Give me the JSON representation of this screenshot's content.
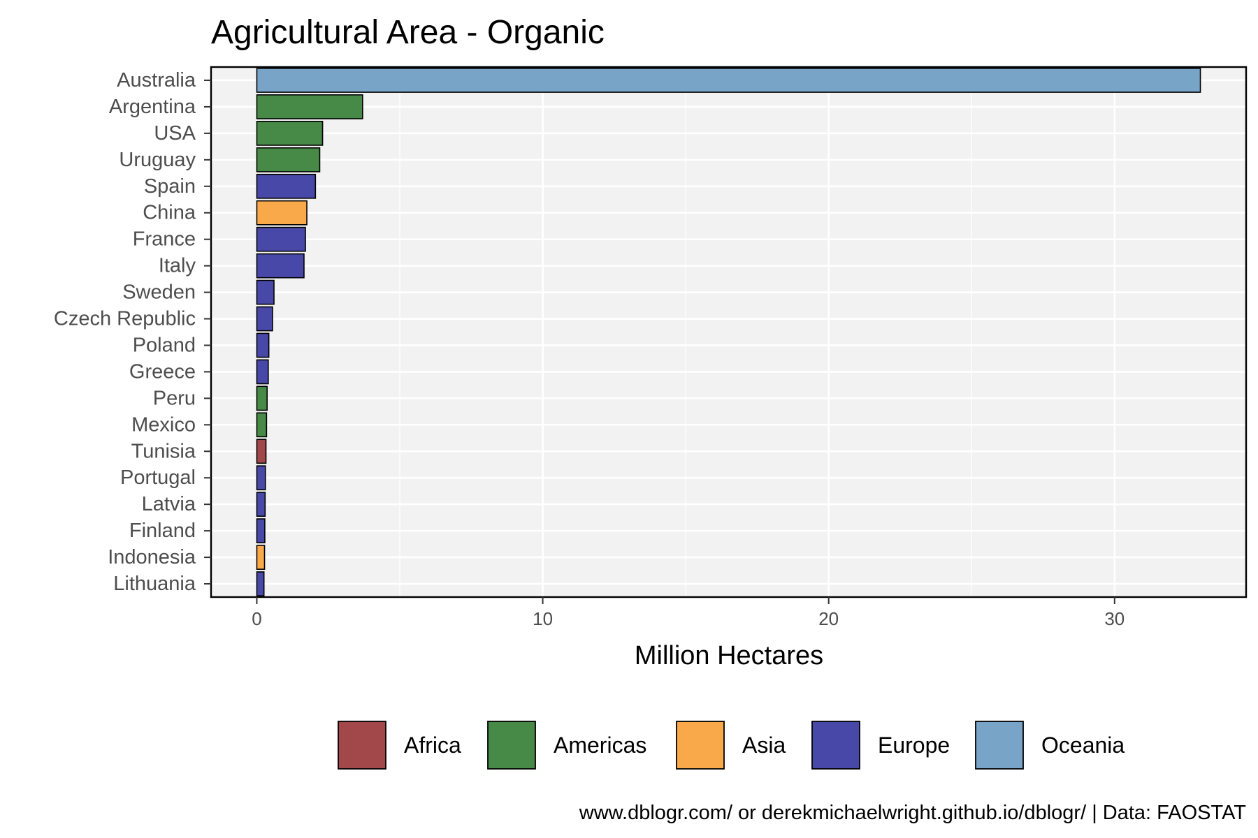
{
  "chart_data": {
    "type": "bar",
    "orientation": "horizontal",
    "title": "Agricultural Area - Organic",
    "xlabel": "Million Hectares",
    "ylabel": "",
    "xlim": [
      -1.6,
      34.6
    ],
    "xticks": [
      0,
      10,
      20,
      30
    ],
    "grid": true,
    "legend_position": "bottom",
    "caption": "www.dblogr.com/ or derekmichaelwright.github.io/dblogr/ | Data: FAOSTAT",
    "colors": {
      "Africa": "#a2484a",
      "Americas": "#478a47",
      "Asia": "#f9a84a",
      "Europe": "#4848a8",
      "Oceania": "#78a4c8"
    },
    "legend": [
      "Africa",
      "Americas",
      "Asia",
      "Europe",
      "Oceania"
    ],
    "categories": [
      "Australia",
      "Argentina",
      "USA",
      "Uruguay",
      "Spain",
      "China",
      "France",
      "Italy",
      "Sweden",
      "Czech Republic",
      "Poland",
      "Greece",
      "Peru",
      "Mexico",
      "Tunisia",
      "Portugal",
      "Latvia",
      "Finland",
      "Indonesia",
      "Lithuania"
    ],
    "values": [
      33.0,
      3.7,
      2.3,
      2.2,
      2.05,
      1.75,
      1.7,
      1.65,
      0.6,
      0.55,
      0.42,
      0.4,
      0.36,
      0.34,
      0.32,
      0.3,
      0.29,
      0.28,
      0.27,
      0.25
    ],
    "regions": [
      "Oceania",
      "Americas",
      "Americas",
      "Americas",
      "Europe",
      "Asia",
      "Europe",
      "Europe",
      "Europe",
      "Europe",
      "Europe",
      "Europe",
      "Americas",
      "Americas",
      "Africa",
      "Europe",
      "Europe",
      "Europe",
      "Asia",
      "Europe"
    ]
  }
}
